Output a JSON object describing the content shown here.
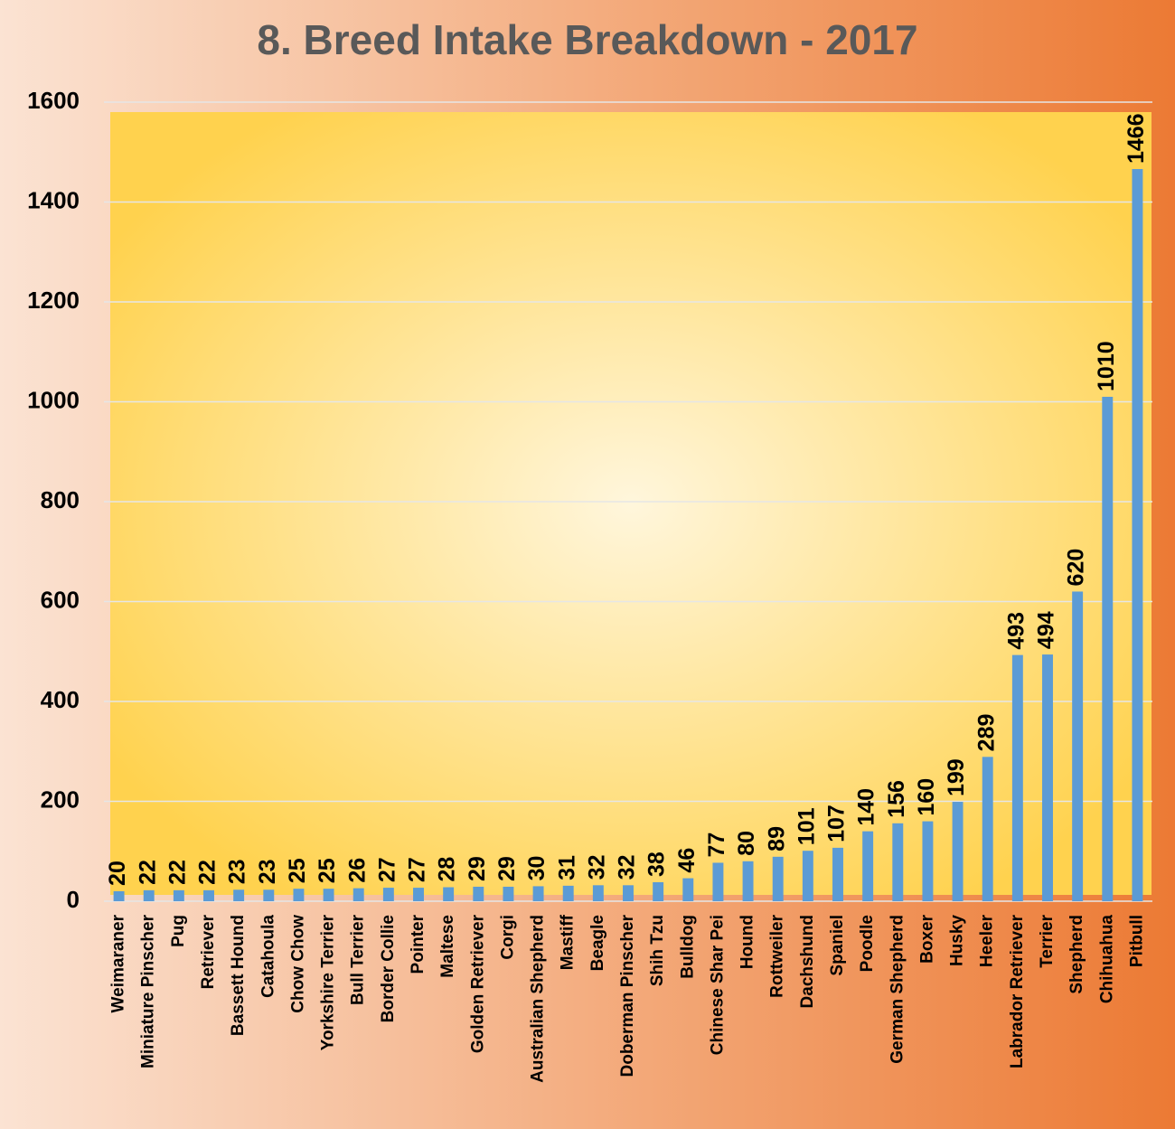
{
  "chart_data": {
    "type": "bar",
    "title": "8. Breed Intake Breakdown - 2017",
    "categories": [
      "Weimaraner",
      "Miniature Pinscher",
      "Pug",
      "Retriever",
      "Bassett Hound",
      "Catahoula",
      "Chow Chow",
      "Yorkshire Terrier",
      "Bull Terrier",
      "Border Collie",
      "Pointer",
      "Maltese",
      "Golden Retriever",
      "Corgi",
      "Australian Shepherd",
      "Mastiff",
      "Beagle",
      "Doberman Pinscher",
      "Shih Tzu",
      "Bulldog",
      "Chinese Shar Pei",
      "Hound",
      "Rottweiler",
      "Dachshund",
      "Spaniel",
      "Poodle",
      "German Shepherd",
      "Boxer",
      "Husky",
      "Heeler",
      "Labrador Retriever",
      "Terrier",
      "Shepherd",
      "Chihuahua",
      "Pitbull"
    ],
    "values": [
      20,
      22,
      22,
      22,
      23,
      23,
      25,
      25,
      26,
      27,
      27,
      28,
      29,
      29,
      30,
      31,
      32,
      32,
      38,
      46,
      77,
      80,
      89,
      101,
      107,
      140,
      156,
      160,
      199,
      289,
      493,
      494,
      620,
      1010,
      1466
    ],
    "color": "#5b9bd5",
    "ylim": [
      0,
      1600
    ],
    "yticks": [
      0,
      200,
      400,
      600,
      800,
      1000,
      1200,
      1400,
      1600
    ],
    "grid": true
  }
}
